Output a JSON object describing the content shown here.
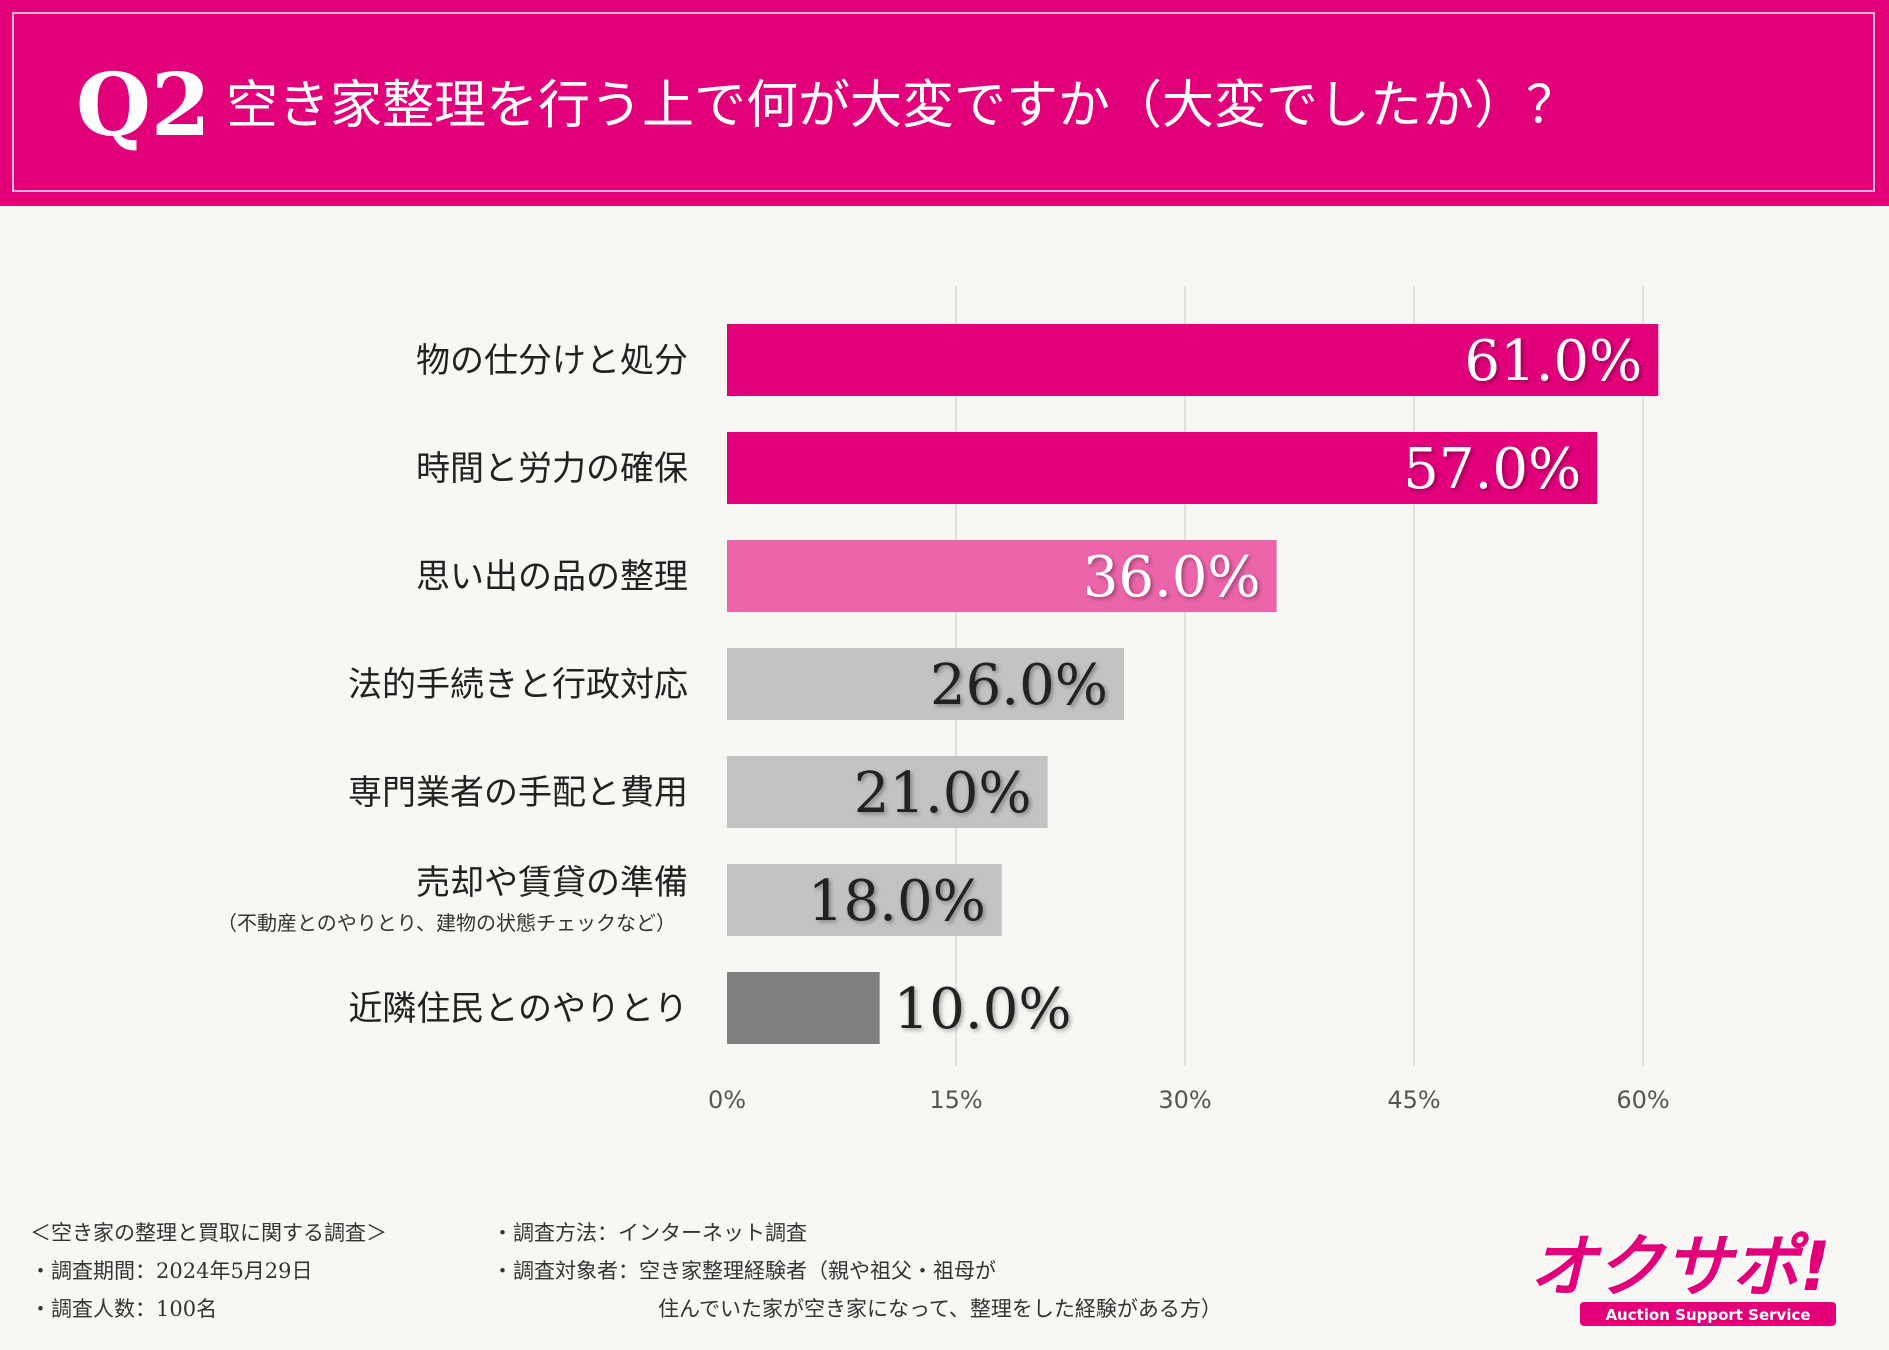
{
  "header": {
    "question_number": "Q2",
    "title": "空き家整理を行う上で何が大変ですか（大変でしたか）？"
  },
  "colors": {
    "brand": "#e2007a",
    "bar_primary": "#e2007a",
    "bar_light_pink": "#ec65ab",
    "bar_grey": "#c3c3c3",
    "bar_dark_grey": "#808080"
  },
  "chart_data": {
    "type": "bar",
    "orientation": "horizontal",
    "categories": [
      "物の仕分けと処分",
      "時間と労力の確保",
      "思い出の品の整理",
      "法的手続きと行政対応",
      "専門業者の手配と費用",
      "売却や賃貸の準備",
      "近隣住民とのやりとり"
    ],
    "sublabels": [
      "",
      "",
      "",
      "",
      "",
      "（不動産とのやりとり、建物の状態チェックなど）",
      ""
    ],
    "values": [
      61.0,
      57.0,
      36.0,
      26.0,
      21.0,
      18.0,
      10.0
    ],
    "value_labels": [
      "61.0%",
      "57.0%",
      "36.0%",
      "26.0%",
      "21.0%",
      "18.0%",
      "10.0%"
    ],
    "bar_colors": [
      "#e2007a",
      "#e2007a",
      "#ec65ab",
      "#c3c3c3",
      "#c3c3c3",
      "#c3c3c3",
      "#808080"
    ],
    "label_colors": [
      "#ffffff",
      "#ffffff",
      "#ffffff",
      "#222222",
      "#222222",
      "#222222",
      "#222222"
    ],
    "xlim": [
      0,
      60
    ],
    "xticks": [
      0,
      15,
      30,
      45,
      60
    ],
    "xtick_labels": [
      "0%",
      "15%",
      "30%",
      "45%",
      "60%"
    ],
    "grid": true,
    "xlabel": "",
    "ylabel": ""
  },
  "footer": {
    "survey_name": "＜空き家の整理と買取に関する調査＞",
    "period": "・調査期間：2024年5月29日",
    "respondents": "・調査人数：100名",
    "method": "・調査方法：インターネット調査",
    "target_line1": "・調査対象者：空き家整理経験者（親や祖父・祖母が",
    "target_line2": "住んでいた家が空き家になって、整理をした経験がある方）"
  },
  "logo": {
    "main_text": "オクサポ!",
    "sub_text": "Auction Support Service"
  }
}
